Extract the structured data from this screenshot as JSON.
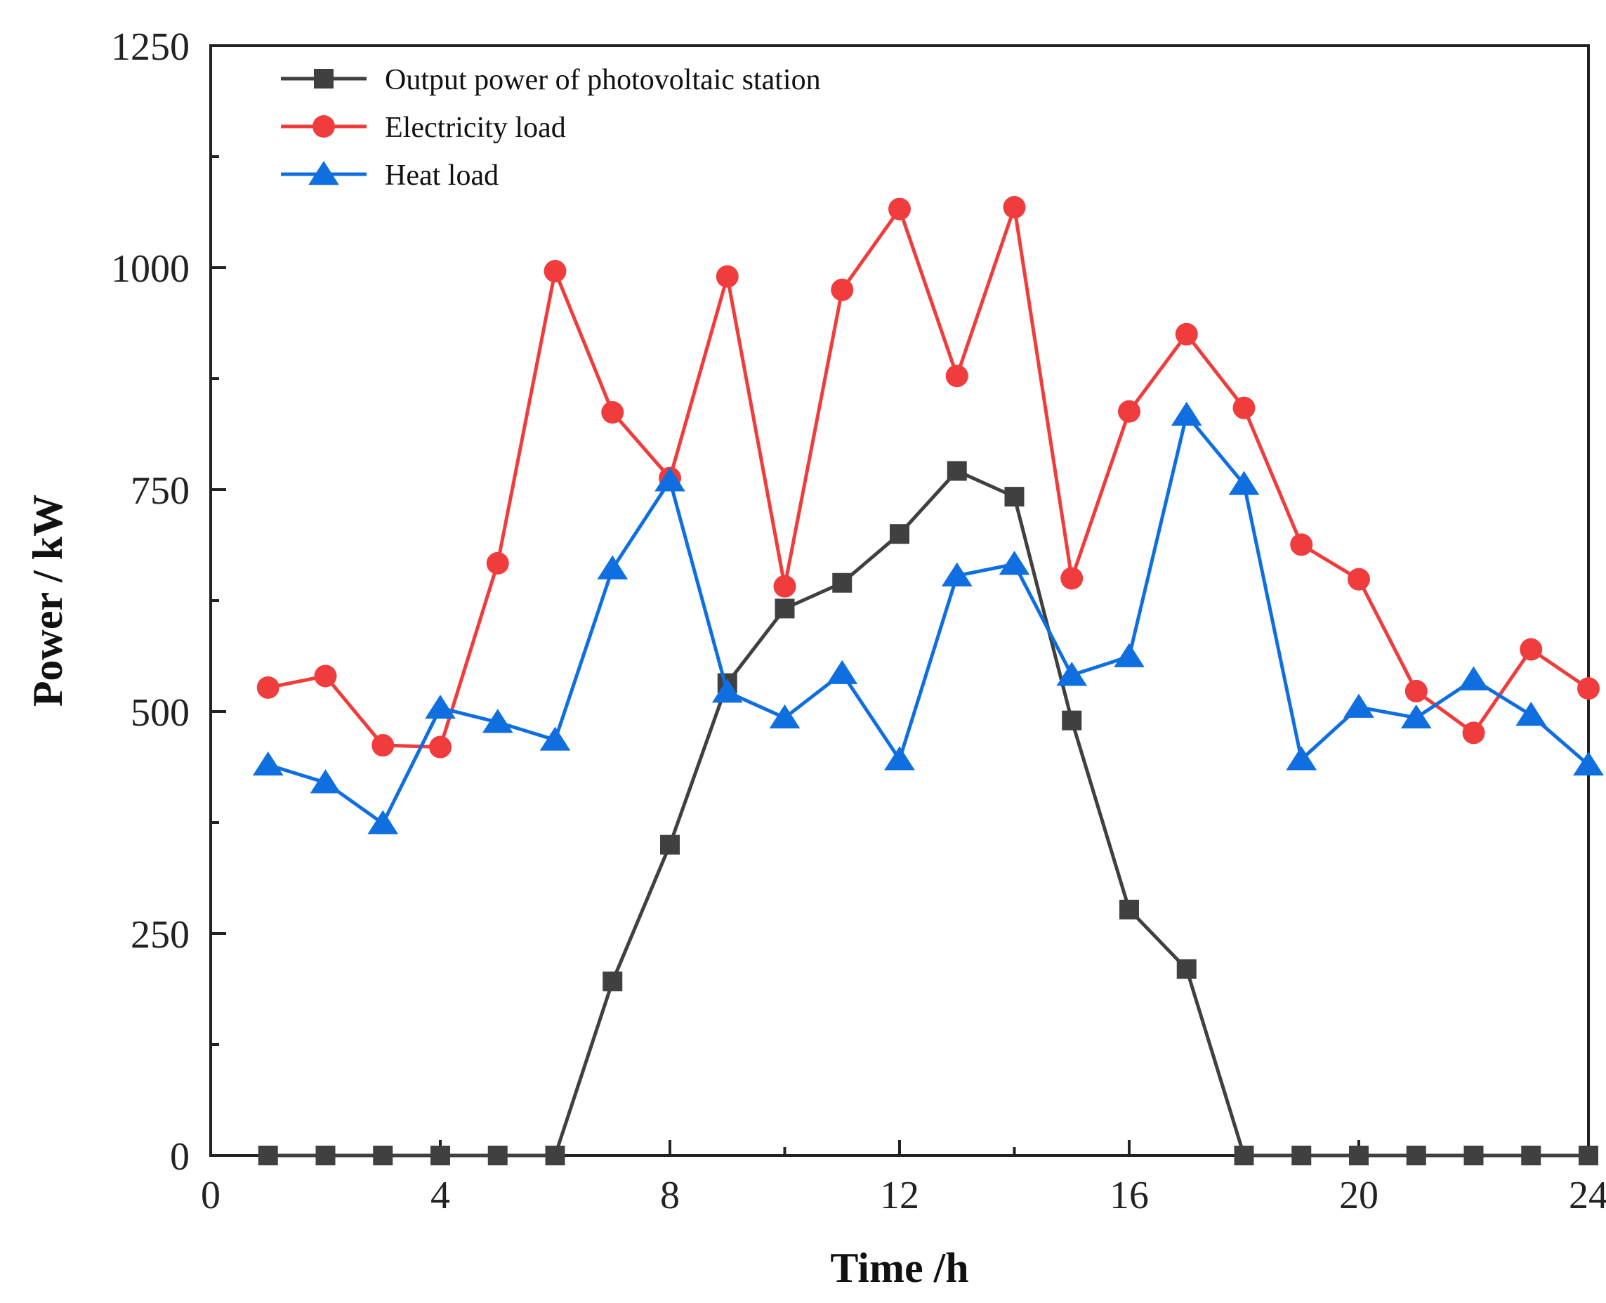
{
  "chart_data": {
    "type": "line",
    "title": "",
    "xlabel": "Time /h",
    "ylabel": "Power / kW",
    "xlim": [
      0,
      24
    ],
    "ylim": [
      0,
      1250
    ],
    "x_ticks": [
      0,
      4,
      8,
      12,
      16,
      20,
      24
    ],
    "y_ticks": [
      0,
      250,
      500,
      750,
      1000,
      1250
    ],
    "grid": false,
    "legend_position": "top-left",
    "x": [
      1,
      2,
      3,
      4,
      5,
      6,
      7,
      8,
      9,
      10,
      11,
      12,
      13,
      14,
      15,
      16,
      17,
      18,
      19,
      20,
      21,
      22,
      23,
      24
    ],
    "series": [
      {
        "name": "Output power of photovoltaic station",
        "color": "#404040",
        "marker": "square",
        "values": [
          0,
          0,
          0,
          0,
          0,
          0,
          196,
          350,
          532,
          616,
          645,
          700,
          771,
          742,
          490,
          277,
          210,
          0,
          0,
          0,
          0,
          0,
          0,
          0
        ]
      },
      {
        "name": "Electricity load",
        "color": "#f03c3c",
        "marker": "circle",
        "values": [
          527,
          540,
          462,
          460,
          667,
          996,
          837,
          763,
          990,
          641,
          975,
          1066,
          878,
          1068,
          650,
          838,
          925,
          842,
          688,
          649,
          523,
          476,
          570,
          526
        ]
      },
      {
        "name": "Heat load",
        "color": "#0f6fe0",
        "marker": "triangle",
        "values": [
          440,
          420,
          374,
          504,
          488,
          468,
          661,
          760,
          522,
          493,
          543,
          446,
          653,
          666,
          541,
          562,
          834,
          756,
          446,
          505,
          493,
          536,
          496,
          440
        ]
      }
    ]
  }
}
